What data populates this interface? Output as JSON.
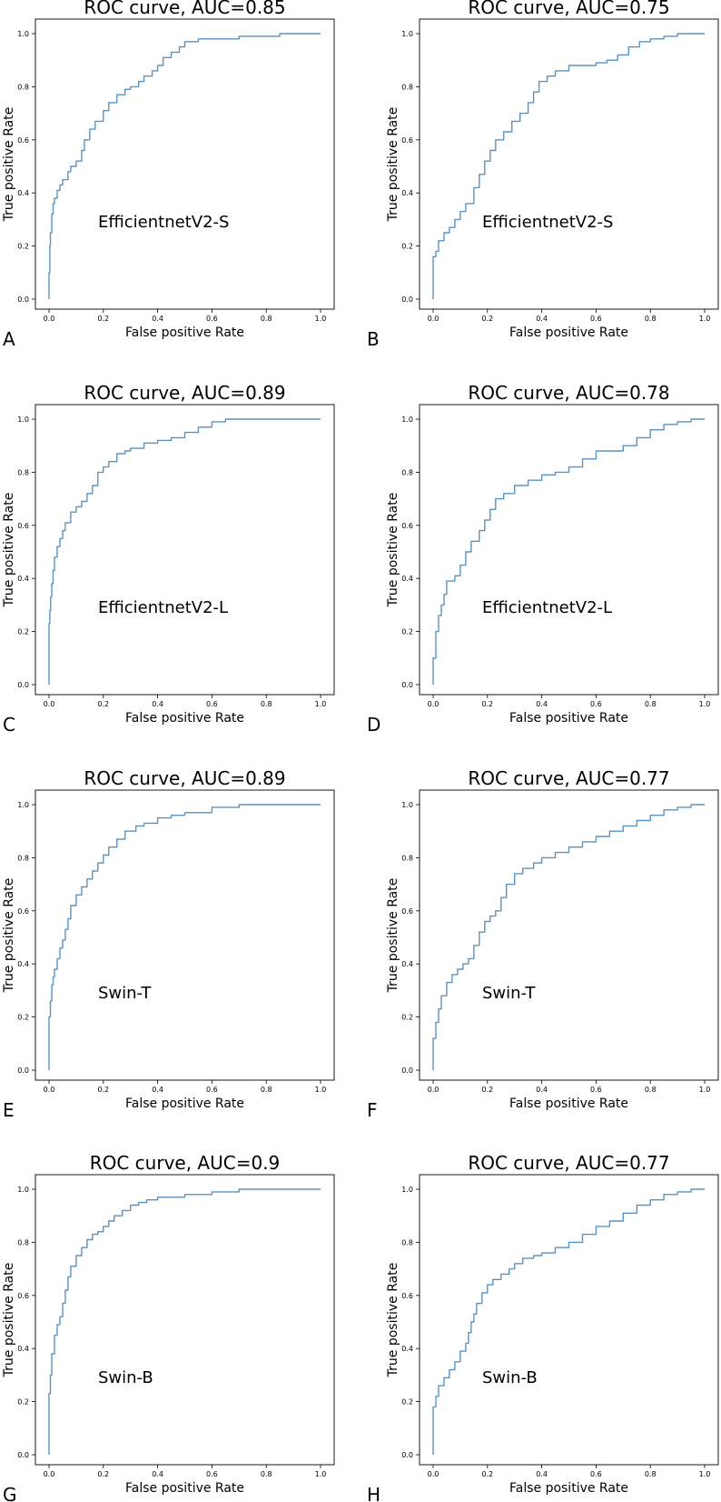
{
  "figure": {
    "line_color": "#5b93c0"
  },
  "chart_data": [
    {
      "panel": "A",
      "type": "line",
      "title": "ROC curve, AUC=0.85",
      "model": "EfficientnetV2-S",
      "xlabel": "False positive Rate",
      "ylabel": "True positive Rate",
      "xlim": [
        0,
        1
      ],
      "ylim": [
        0,
        1
      ],
      "xticks": [
        "0.0",
        "0.2",
        "0.4",
        "0.6",
        "0.8",
        "1.0"
      ],
      "yticks": [
        "0.0",
        "0.2",
        "0.4",
        "0.6",
        "0.8",
        "1.0"
      ],
      "x": [
        0.0,
        0.0,
        0.003,
        0.005,
        0.01,
        0.015,
        0.02,
        0.03,
        0.04,
        0.05,
        0.07,
        0.08,
        0.1,
        0.12,
        0.13,
        0.15,
        0.17,
        0.2,
        0.22,
        0.25,
        0.28,
        0.3,
        0.33,
        0.35,
        0.38,
        0.4,
        0.42,
        0.45,
        0.48,
        0.5,
        0.55,
        0.6,
        0.7,
        0.8,
        0.85,
        0.9,
        1.0
      ],
      "y": [
        0.0,
        0.1,
        0.2,
        0.25,
        0.32,
        0.36,
        0.38,
        0.41,
        0.43,
        0.45,
        0.48,
        0.5,
        0.52,
        0.56,
        0.6,
        0.64,
        0.67,
        0.71,
        0.74,
        0.77,
        0.79,
        0.8,
        0.82,
        0.84,
        0.86,
        0.88,
        0.91,
        0.93,
        0.95,
        0.97,
        0.98,
        0.98,
        0.99,
        0.99,
        1.0,
        1.0,
        1.0
      ]
    },
    {
      "panel": "B",
      "type": "line",
      "title": "ROC curve, AUC=0.75",
      "model": "EfficientnetV2-S",
      "xlabel": "False positive Rate",
      "ylabel": "True positive Rate",
      "xlim": [
        0,
        1
      ],
      "ylim": [
        0,
        1
      ],
      "xticks": [
        "0.0",
        "0.2",
        "0.4",
        "0.6",
        "0.8",
        "1.0"
      ],
      "yticks": [
        "0.0",
        "0.2",
        "0.4",
        "0.6",
        "0.8",
        "1.0"
      ],
      "x": [
        0.0,
        0.0,
        0.01,
        0.02,
        0.04,
        0.06,
        0.08,
        0.1,
        0.12,
        0.15,
        0.17,
        0.19,
        0.21,
        0.23,
        0.26,
        0.29,
        0.32,
        0.35,
        0.37,
        0.39,
        0.42,
        0.45,
        0.5,
        0.55,
        0.6,
        0.64,
        0.68,
        0.72,
        0.76,
        0.8,
        0.85,
        0.9,
        1.0
      ],
      "y": [
        0.0,
        0.16,
        0.18,
        0.22,
        0.25,
        0.27,
        0.3,
        0.33,
        0.36,
        0.42,
        0.47,
        0.52,
        0.56,
        0.6,
        0.63,
        0.67,
        0.7,
        0.74,
        0.78,
        0.82,
        0.84,
        0.86,
        0.88,
        0.88,
        0.89,
        0.9,
        0.92,
        0.95,
        0.97,
        0.98,
        0.99,
        1.0,
        1.0
      ]
    },
    {
      "panel": "C",
      "type": "line",
      "title": "ROC curve, AUC=0.89",
      "model": "EfficientnetV2-L",
      "xlabel": "False positive Rate",
      "ylabel": "True positive Rate",
      "xlim": [
        0,
        1
      ],
      "ylim": [
        0,
        1
      ],
      "xticks": [
        "0.0",
        "0.2",
        "0.4",
        "0.6",
        "0.8",
        "1.0"
      ],
      "yticks": [
        "0.0",
        "0.2",
        "0.4",
        "0.6",
        "0.8",
        "1.0"
      ],
      "x": [
        0.0,
        0.0,
        0.003,
        0.006,
        0.01,
        0.015,
        0.02,
        0.03,
        0.04,
        0.05,
        0.06,
        0.08,
        0.1,
        0.12,
        0.14,
        0.16,
        0.18,
        0.2,
        0.22,
        0.25,
        0.28,
        0.3,
        0.35,
        0.4,
        0.45,
        0.5,
        0.55,
        0.6,
        0.65,
        0.7,
        0.8,
        1.0
      ],
      "y": [
        0.0,
        0.23,
        0.28,
        0.33,
        0.38,
        0.43,
        0.48,
        0.52,
        0.55,
        0.58,
        0.61,
        0.65,
        0.67,
        0.69,
        0.72,
        0.75,
        0.8,
        0.82,
        0.84,
        0.87,
        0.88,
        0.89,
        0.91,
        0.92,
        0.93,
        0.95,
        0.97,
        0.99,
        1.0,
        1.0,
        1.0,
        1.0
      ]
    },
    {
      "panel": "D",
      "type": "line",
      "title": "ROC curve, AUC=0.78",
      "model": "EfficientnetV2-L",
      "xlabel": "False positive Rate",
      "ylabel": "True positive Rate",
      "xlim": [
        0,
        1
      ],
      "ylim": [
        0,
        1
      ],
      "xticks": [
        "0.0",
        "0.2",
        "0.4",
        "0.6",
        "0.8",
        "1.0"
      ],
      "yticks": [
        "0.0",
        "0.2",
        "0.4",
        "0.6",
        "0.8",
        "1.0"
      ],
      "x": [
        0.0,
        0.0,
        0.01,
        0.02,
        0.03,
        0.04,
        0.05,
        0.08,
        0.1,
        0.12,
        0.14,
        0.17,
        0.19,
        0.21,
        0.23,
        0.26,
        0.3,
        0.35,
        0.4,
        0.45,
        0.5,
        0.55,
        0.6,
        0.65,
        0.7,
        0.75,
        0.8,
        0.85,
        0.9,
        0.95,
        1.0
      ],
      "y": [
        0.0,
        0.1,
        0.2,
        0.26,
        0.3,
        0.34,
        0.39,
        0.41,
        0.45,
        0.5,
        0.54,
        0.58,
        0.62,
        0.66,
        0.7,
        0.72,
        0.75,
        0.77,
        0.79,
        0.8,
        0.82,
        0.85,
        0.88,
        0.88,
        0.9,
        0.93,
        0.96,
        0.98,
        0.99,
        1.0,
        1.0
      ]
    },
    {
      "panel": "E",
      "type": "line",
      "title": "ROC curve, AUC=0.89",
      "model": "Swin-T",
      "xlabel": "False positive Rate",
      "ylabel": "True positive Rate",
      "xlim": [
        0,
        1
      ],
      "ylim": [
        0,
        1
      ],
      "xticks": [
        "0.0",
        "0.2",
        "0.4",
        "0.6",
        "0.8",
        "1.0"
      ],
      "yticks": [
        "0.0",
        "0.2",
        "0.4",
        "0.6",
        "0.8",
        "1.0"
      ],
      "x": [
        0.0,
        0.0,
        0.005,
        0.01,
        0.015,
        0.02,
        0.03,
        0.04,
        0.05,
        0.06,
        0.07,
        0.08,
        0.1,
        0.12,
        0.14,
        0.16,
        0.18,
        0.2,
        0.22,
        0.25,
        0.28,
        0.32,
        0.35,
        0.4,
        0.45,
        0.5,
        0.6,
        0.7,
        0.8,
        1.0
      ],
      "y": [
        0.0,
        0.2,
        0.26,
        0.32,
        0.35,
        0.38,
        0.42,
        0.46,
        0.49,
        0.53,
        0.57,
        0.62,
        0.66,
        0.69,
        0.72,
        0.75,
        0.78,
        0.81,
        0.84,
        0.87,
        0.9,
        0.92,
        0.93,
        0.95,
        0.96,
        0.97,
        0.99,
        1.0,
        1.0,
        1.0
      ]
    },
    {
      "panel": "F",
      "type": "line",
      "title": "ROC curve, AUC=0.77",
      "model": "Swin-T",
      "xlabel": "False positive Rate",
      "ylabel": "True positive Rate",
      "xlim": [
        0,
        1
      ],
      "ylim": [
        0,
        1
      ],
      "xticks": [
        "0.0",
        "0.2",
        "0.4",
        "0.6",
        "0.8",
        "1.0"
      ],
      "yticks": [
        "0.0",
        "0.2",
        "0.4",
        "0.6",
        "0.8",
        "1.0"
      ],
      "x": [
        0.0,
        0.0,
        0.01,
        0.02,
        0.03,
        0.05,
        0.07,
        0.09,
        0.11,
        0.13,
        0.15,
        0.17,
        0.19,
        0.21,
        0.23,
        0.25,
        0.27,
        0.3,
        0.33,
        0.37,
        0.4,
        0.45,
        0.5,
        0.55,
        0.6,
        0.65,
        0.7,
        0.75,
        0.8,
        0.85,
        0.9,
        0.95,
        1.0
      ],
      "y": [
        0.0,
        0.12,
        0.18,
        0.23,
        0.28,
        0.33,
        0.36,
        0.38,
        0.4,
        0.42,
        0.47,
        0.52,
        0.56,
        0.58,
        0.6,
        0.65,
        0.7,
        0.74,
        0.76,
        0.78,
        0.8,
        0.82,
        0.84,
        0.86,
        0.88,
        0.9,
        0.92,
        0.94,
        0.96,
        0.98,
        0.99,
        1.0,
        1.0
      ]
    },
    {
      "panel": "G",
      "type": "line",
      "title": "ROC curve, AUC=0.9",
      "model": "Swin-B",
      "xlabel": "False positive Rate",
      "ylabel": "True positive Rate",
      "xlim": [
        0,
        1
      ],
      "ylim": [
        0,
        1
      ],
      "xticks": [
        "0.0",
        "0.2",
        "0.4",
        "0.6",
        "0.8",
        "1.0"
      ],
      "yticks": [
        "0.0",
        "0.2",
        "0.4",
        "0.6",
        "0.8",
        "1.0"
      ],
      "x": [
        0.0,
        0.0,
        0.005,
        0.01,
        0.02,
        0.03,
        0.04,
        0.05,
        0.06,
        0.07,
        0.08,
        0.1,
        0.12,
        0.14,
        0.16,
        0.18,
        0.2,
        0.22,
        0.24,
        0.27,
        0.3,
        0.33,
        0.36,
        0.4,
        0.5,
        0.6,
        0.7,
        0.8,
        1.0
      ],
      "y": [
        0.0,
        0.23,
        0.3,
        0.38,
        0.45,
        0.49,
        0.52,
        0.57,
        0.62,
        0.67,
        0.71,
        0.75,
        0.78,
        0.81,
        0.83,
        0.84,
        0.86,
        0.88,
        0.9,
        0.92,
        0.94,
        0.95,
        0.96,
        0.97,
        0.98,
        0.99,
        1.0,
        1.0,
        1.0
      ]
    },
    {
      "panel": "H",
      "type": "line",
      "title": "ROC curve, AUC=0.77",
      "model": "Swin-B",
      "xlabel": "False positive Rate",
      "ylabel": "True positive Rate",
      "xlim": [
        0,
        1
      ],
      "ylim": [
        0,
        1
      ],
      "xticks": [
        "0.0",
        "0.2",
        "0.4",
        "0.6",
        "0.8",
        "1.0"
      ],
      "yticks": [
        "0.0",
        "0.2",
        "0.4",
        "0.6",
        "0.8",
        "1.0"
      ],
      "x": [
        0.0,
        0.0,
        0.01,
        0.02,
        0.04,
        0.06,
        0.08,
        0.1,
        0.12,
        0.13,
        0.14,
        0.15,
        0.16,
        0.18,
        0.2,
        0.22,
        0.25,
        0.28,
        0.3,
        0.33,
        0.37,
        0.4,
        0.45,
        0.5,
        0.55,
        0.6,
        0.65,
        0.7,
        0.75,
        0.8,
        0.85,
        0.9,
        0.95,
        1.0
      ],
      "y": [
        0.0,
        0.18,
        0.22,
        0.26,
        0.29,
        0.32,
        0.35,
        0.39,
        0.42,
        0.46,
        0.5,
        0.53,
        0.57,
        0.61,
        0.64,
        0.66,
        0.68,
        0.7,
        0.72,
        0.74,
        0.75,
        0.76,
        0.78,
        0.8,
        0.83,
        0.86,
        0.88,
        0.91,
        0.94,
        0.96,
        0.98,
        0.99,
        1.0,
        1.0
      ]
    }
  ]
}
